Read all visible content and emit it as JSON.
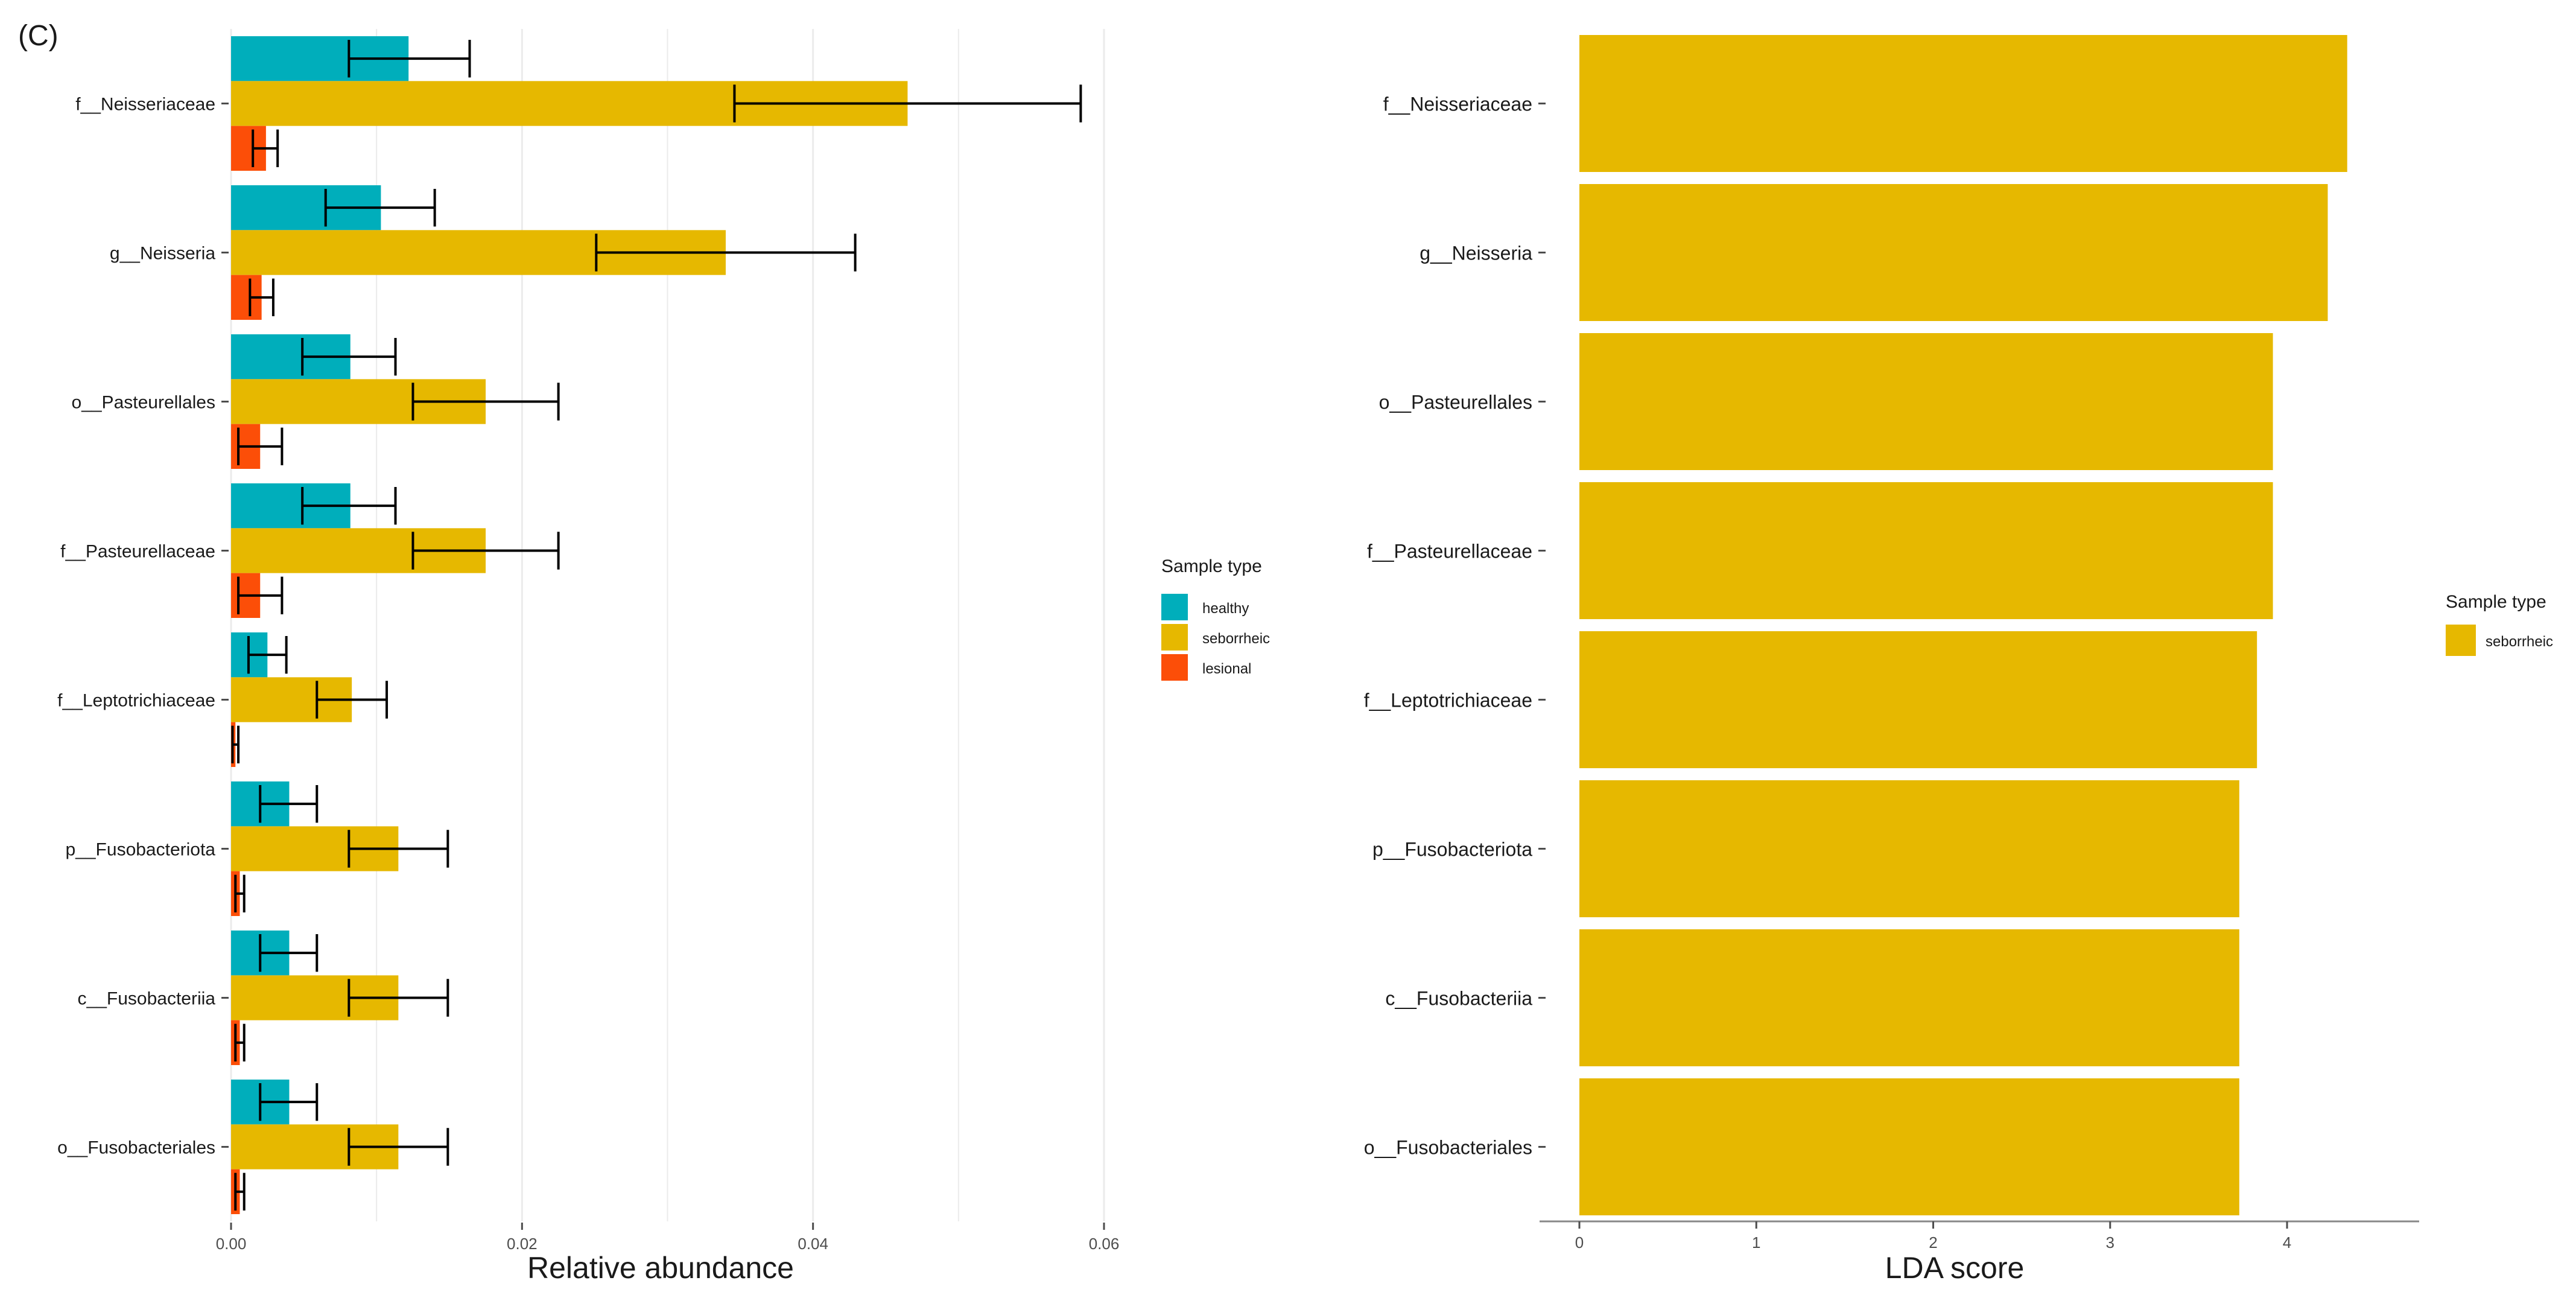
{
  "panel_label": "(C)",
  "colors": {
    "healthy": "#00aebb",
    "seborrheic": "#e6b800",
    "lesional": "#fc4e08",
    "grid": "#ebebeb",
    "axis": "#4d4d4d",
    "errorbar": "#000000",
    "text": "#1a1a1a"
  },
  "chart_data": [
    {
      "type": "bar",
      "orientation": "horizontal",
      "xlabel": "Relative abundance",
      "ylabel": "",
      "xlim": [
        0,
        0.06
      ],
      "x_ticks": [
        0,
        0.02,
        0.04,
        0.06
      ],
      "x_tick_labels": [
        "0.00",
        "0.02",
        "0.04",
        "0.06"
      ],
      "grid": true,
      "categories": [
        "f__Neisseriaceae",
        "g__Neisseria",
        "o__Pasteurellales",
        "f__Pasteurellaceae",
        "f__Leptotrichiaceae",
        "p__Fusobacteriota",
        "c__Fusobacteriia",
        "o__Fusobacteriales"
      ],
      "series": [
        {
          "name": "healthy",
          "values": [
            0.0122,
            0.0103,
            0.0082,
            0.0082,
            0.0025,
            0.004,
            0.004,
            0.004
          ],
          "error_low": [
            0.0081,
            0.0065,
            0.0049,
            0.0049,
            0.0012,
            0.002,
            0.002,
            0.002
          ],
          "error_high": [
            0.0164,
            0.014,
            0.0113,
            0.0113,
            0.0038,
            0.0059,
            0.0059,
            0.0059
          ]
        },
        {
          "name": "seborrheic",
          "values": [
            0.0465,
            0.034,
            0.0175,
            0.0175,
            0.0083,
            0.0115,
            0.0115,
            0.0115
          ],
          "error_low": [
            0.0346,
            0.0251,
            0.0125,
            0.0125,
            0.0059,
            0.0081,
            0.0081,
            0.0081
          ],
          "error_high": [
            0.0584,
            0.0429,
            0.0225,
            0.0225,
            0.0107,
            0.0149,
            0.0149,
            0.0149
          ]
        },
        {
          "name": "lesional",
          "values": [
            0.0024,
            0.0021,
            0.002,
            0.002,
            0.0003,
            0.0006,
            0.0006,
            0.0006
          ],
          "error_low": [
            0.0015,
            0.0013,
            0.0005,
            0.0005,
            0.0001,
            0.0003,
            0.0003,
            0.0003
          ],
          "error_high": [
            0.0032,
            0.0029,
            0.0035,
            0.0035,
            0.0005,
            0.0009,
            0.0009,
            0.0009
          ]
        }
      ],
      "legend": {
        "title": "Sample type",
        "entries": [
          "healthy",
          "seborrheic",
          "lesional"
        ],
        "position": "right"
      }
    },
    {
      "type": "bar",
      "orientation": "horizontal",
      "xlabel": "LDA score",
      "ylabel": "",
      "xlim": [
        0,
        4.6
      ],
      "x_ticks": [
        0,
        1,
        2,
        3,
        4
      ],
      "x_tick_labels": [
        "0",
        "1",
        "2",
        "3",
        "4"
      ],
      "grid": false,
      "categories": [
        "f__Neisseriaceae",
        "g__Neisseria",
        "o__Pasteurellales",
        "f__Pasteurellaceae",
        "f__Leptotrichiaceae",
        "p__Fusobacteriota",
        "c__Fusobacteriia",
        "o__Fusobacteriales"
      ],
      "series": [
        {
          "name": "seborrheic",
          "values": [
            4.34,
            4.23,
            3.92,
            3.92,
            3.83,
            3.73,
            3.73,
            3.73
          ]
        }
      ],
      "legend": {
        "title": "Sample type",
        "entries": [
          "seborrheic"
        ],
        "position": "right"
      }
    }
  ]
}
